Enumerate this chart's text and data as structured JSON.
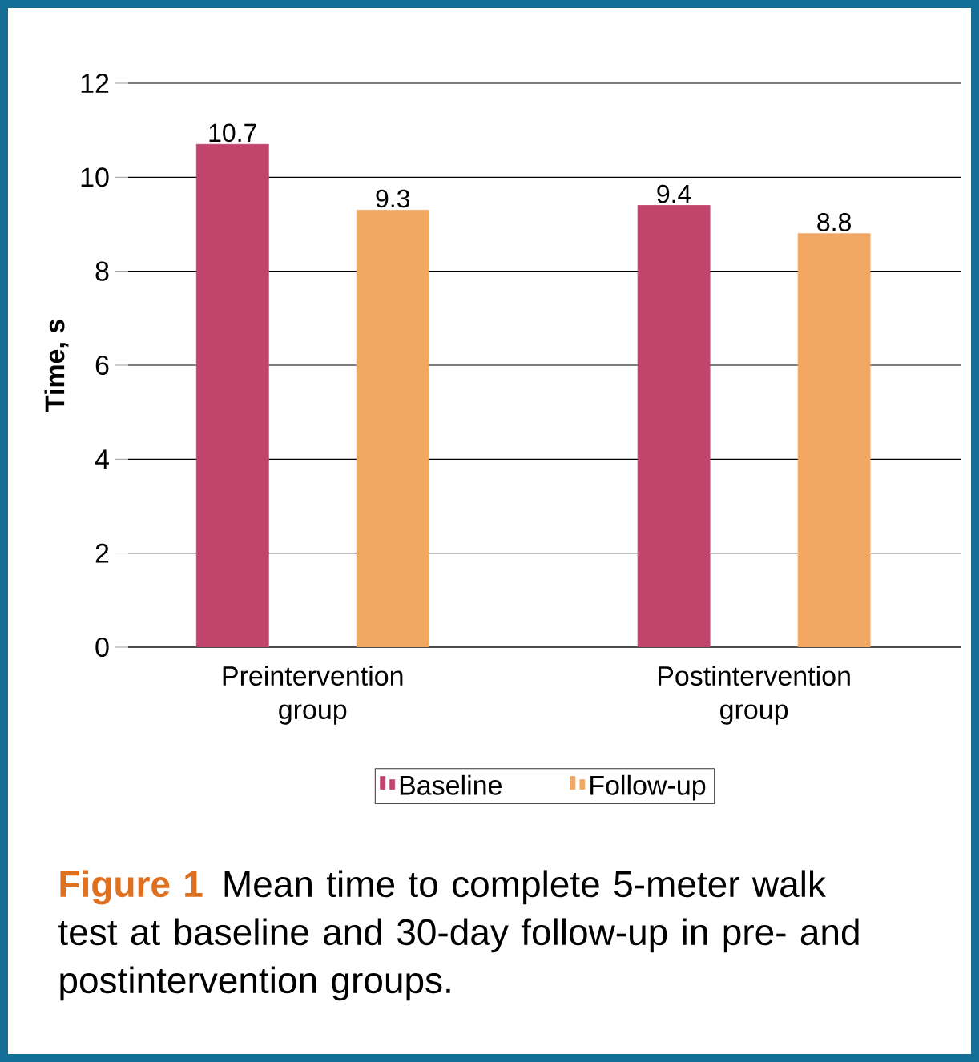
{
  "chart_data": {
    "type": "bar",
    "ylabel": "Time, s",
    "categories": [
      "Preintervention group",
      "Postintervention group"
    ],
    "series": [
      {
        "name": "Baseline",
        "color": "#c0446c",
        "values": [
          10.7,
          9.4
        ]
      },
      {
        "name": "Follow-up",
        "color": "#f2a862",
        "values": [
          9.3,
          8.8
        ]
      }
    ],
    "ylim": [
      0,
      12
    ],
    "yticks": [
      0,
      2,
      4,
      6,
      8,
      10,
      12
    ],
    "grid": "y",
    "legend": "bottom",
    "data_labels": true,
    "annotations": [
      "Figure 1",
      "Mean time to complete 5-meter walk test at baseline and 30-day follow-up in pre- and postintervention groups."
    ]
  }
}
